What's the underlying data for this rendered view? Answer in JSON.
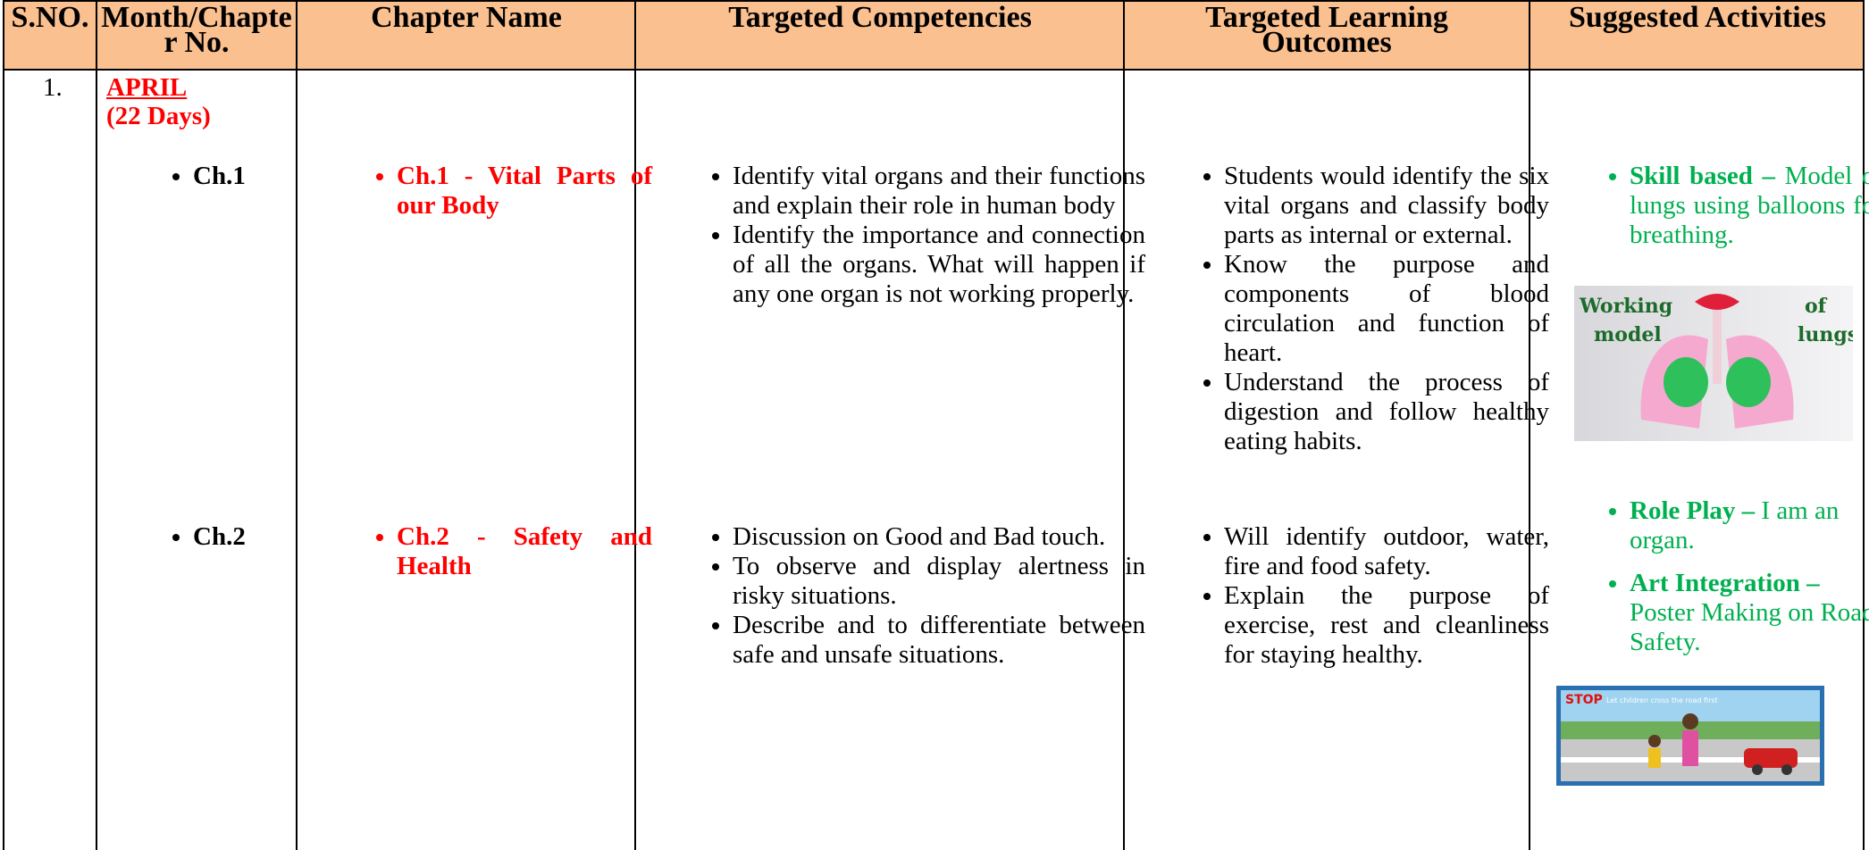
{
  "header": {
    "columns": [
      "S.NO.",
      "Month/Chapter No.",
      "Chapter Name",
      "Targeted Competencies",
      "Targeted Learning Outcomes",
      "Suggested Activities"
    ]
  },
  "row": {
    "sn": "1.",
    "month": "APRIL",
    "days": "(22 Days)",
    "chapters": [
      {
        "number": "Ch.1",
        "name": "Ch.1 - Vital Parts of our Body",
        "competencies": [
          "Identify vital organs and their functions and explain their role in human body",
          "Identify the importance and connection of all the organs. What will happen if any one organ is not working properly."
        ],
        "outcomes": [
          "Students would identify the six vital organs and classify body parts as internal or external.",
          "Know the purpose and components of blood circulation and function of heart.",
          "Understand the process of digestion and follow healthy eating habits."
        ]
      },
      {
        "number": "Ch.2",
        "name": "Ch.2 - Safety and Health",
        "competencies": [
          "Discussion on Good and Bad touch.",
          "To observe and display alertness in risky situations.",
          "Describe and to differentiate between safe and unsafe situations."
        ],
        "outcomes": [
          "Will identify outdoor, water, fire and food safety.",
          "Explain the purpose of exercise, rest and cleanliness for staying healthy."
        ]
      }
    ],
    "activities": [
      {
        "title": "Skill based",
        "separator": "–",
        "text": "Model of lungs using balloons for breathing."
      },
      {
        "title": "Role Play",
        "separator": "–",
        "text": "I am an organ."
      },
      {
        "title": "Art Integration",
        "separator": "–",
        "text": "Poster Making on Road Safety."
      }
    ],
    "images": [
      {
        "words": [
          "Working",
          "model",
          "of",
          "lungs"
        ]
      },
      {
        "title": "STOP",
        "caption": "Let children cross the road first"
      }
    ]
  }
}
